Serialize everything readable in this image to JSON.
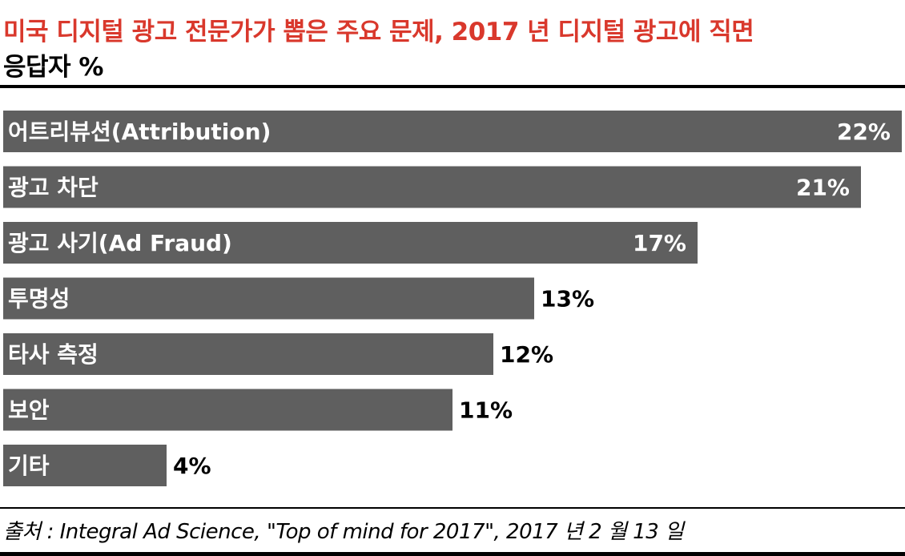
{
  "chart_data": {
    "type": "bar",
    "orientation": "horizontal",
    "title": "미국 디지털 광고 전문가가 뽑은 주요 문제, 2017 년 디지털 광고에 직면",
    "subtitle": "응답자 %",
    "categories": [
      "어트리뷰션(Attribution)",
      "광고 차단",
      "광고 사기(Ad Fraud)",
      "투명성",
      "타사 측정",
      "보안",
      "기타"
    ],
    "values": [
      22,
      21,
      17,
      13,
      12,
      11,
      4
    ],
    "value_suffix": "%",
    "xlim": [
      0,
      22
    ],
    "grid": false,
    "legend": "none",
    "source": "출처 : Integral Ad Science, \"Top of mind for 2017\", 2017 년 2 월 13 일"
  },
  "colors": {
    "title": "#d9382c",
    "bar": "#5f5f5f",
    "label_inside": "#ffffff",
    "label_outside": "#000000"
  }
}
